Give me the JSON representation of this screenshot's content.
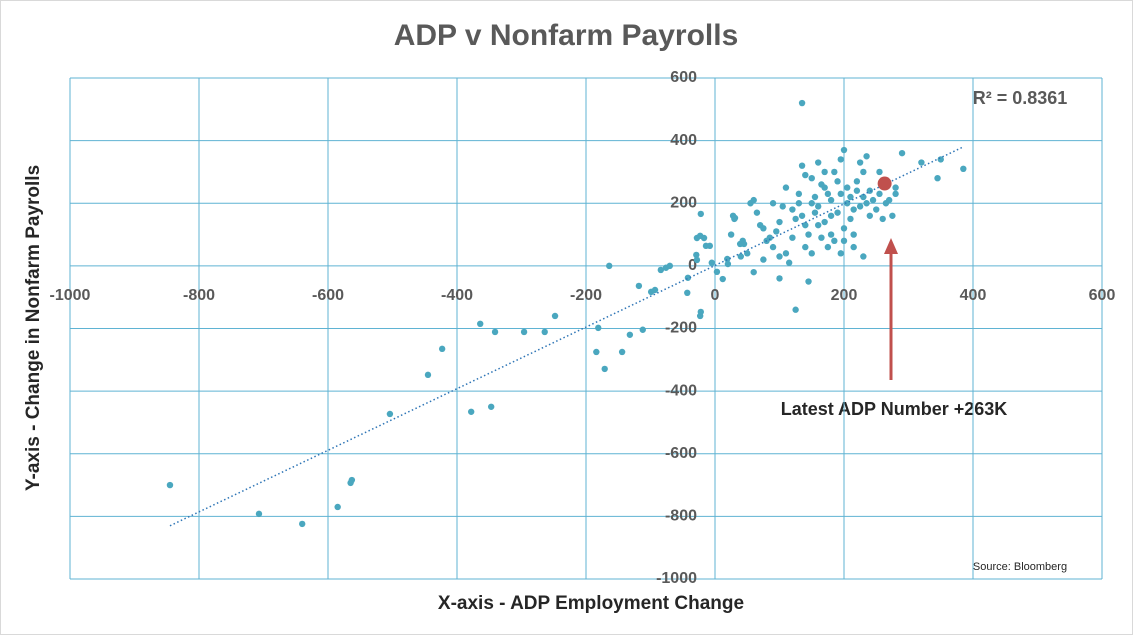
{
  "chart_data": {
    "type": "scatter",
    "title": "ADP v Nonfarm Payrolls",
    "x_label": "X-axis - ADP Employment Change",
    "y_label": "Y-axis - Change in Nonfarm Payrolls",
    "xlim": [
      -1000,
      600
    ],
    "ylim": [
      -1000,
      600
    ],
    "xticks": [
      -1000,
      -800,
      -600,
      -400,
      -200,
      0,
      200,
      400,
      600
    ],
    "yticks": [
      -1000,
      -800,
      -600,
      -400,
      -200,
      0,
      200,
      400,
      600
    ],
    "grid": true,
    "color": "#4aa7bf",
    "x": [
      -845,
      -707,
      -640,
      -585,
      -565,
      -563,
      -504,
      -445,
      -423,
      -378,
      -364,
      -347,
      -341,
      -296,
      -264,
      -248,
      -181,
      -171,
      -164,
      -184,
      -144,
      -132,
      -112,
      -118,
      -99,
      -93,
      -84,
      -76,
      -70,
      -43,
      -42,
      -23,
      -22,
      -22,
      -28,
      -23,
      -17,
      -14,
      -8,
      -29,
      -28,
      -5,
      3,
      12,
      19,
      20,
      28,
      31,
      39,
      43,
      25,
      30,
      40,
      45,
      50,
      60,
      75,
      90,
      100,
      55,
      60,
      65,
      70,
      75,
      80,
      85,
      90,
      95,
      100,
      100,
      105,
      110,
      110,
      115,
      120,
      120,
      125,
      125,
      130,
      130,
      135,
      135,
      135,
      140,
      140,
      145,
      145,
      150,
      150,
      150,
      155,
      155,
      160,
      160,
      165,
      165,
      170,
      170,
      175,
      175,
      180,
      180,
      185,
      185,
      190,
      190,
      195,
      195,
      200,
      200,
      200,
      205,
      205,
      210,
      210,
      215,
      215,
      220,
      220,
      225,
      225,
      230,
      230,
      235,
      235,
      240,
      240,
      245,
      250,
      255,
      255,
      260,
      265,
      270,
      275,
      280,
      280,
      290,
      320,
      345,
      350,
      385,
      230,
      195,
      215,
      180,
      140,
      160,
      170
    ],
    "y": [
      -700,
      -792,
      -824,
      -770,
      -693,
      -684,
      -473,
      -348,
      -265,
      -466,
      -185,
      -450,
      -211,
      -211,
      -211,
      -160,
      -198,
      -329,
      0,
      -275,
      -275,
      -220,
      -204,
      -64,
      -83,
      -77,
      -13,
      -6,
      0,
      -86,
      -38,
      -160,
      -147,
      166,
      89,
      96,
      89,
      64,
      64,
      35,
      19,
      10,
      -19,
      -42,
      22,
      6,
      160,
      153,
      70,
      80,
      100,
      150,
      30,
      70,
      40,
      -20,
      20,
      200,
      -40,
      200,
      210,
      170,
      130,
      120,
      80,
      90,
      60,
      110,
      140,
      30,
      190,
      250,
      40,
      10,
      180,
      90,
      150,
      -140,
      200,
      230,
      320,
      160,
      520,
      130,
      60,
      100,
      -50,
      280,
      200,
      40,
      220,
      170,
      190,
      130,
      260,
      90,
      250,
      140,
      230,
      60,
      210,
      100,
      300,
      80,
      270,
      170,
      340,
      230,
      370,
      120,
      80,
      250,
      200,
      220,
      150,
      180,
      100,
      240,
      270,
      330,
      190,
      300,
      220,
      350,
      200,
      240,
      160,
      210,
      180,
      300,
      230,
      150,
      200,
      210,
      160,
      250,
      230,
      360,
      330,
      280,
      340,
      310,
      30,
      40,
      60,
      160,
      290,
      330,
      300
    ],
    "trendline": {
      "x": [
        -845,
        385
      ],
      "y": [
        -830,
        380
      ]
    },
    "highlight": {
      "x": 263,
      "y": 263,
      "color": "#c0504d"
    },
    "annotation": "Latest ADP Number +263K",
    "r_squared": "R² = 0.8361",
    "source": "Source: Bloomberg"
  }
}
